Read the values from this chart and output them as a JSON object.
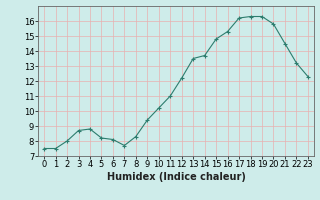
{
  "x": [
    0,
    1,
    2,
    3,
    4,
    5,
    6,
    7,
    8,
    9,
    10,
    11,
    12,
    13,
    14,
    15,
    16,
    17,
    18,
    19,
    20,
    21,
    22,
    23
  ],
  "y": [
    7.5,
    7.5,
    8.0,
    8.7,
    8.8,
    8.2,
    8.1,
    7.7,
    8.3,
    9.4,
    10.2,
    11.0,
    12.2,
    13.5,
    13.7,
    14.8,
    15.3,
    16.2,
    16.3,
    16.3,
    15.8,
    14.5,
    13.2,
    12.3
  ],
  "line_color": "#2d7d6e",
  "marker": "+",
  "bg_color": "#ceecea",
  "grid_color_major": "#e8b0b0",
  "grid_color_minor": "#e8b0b0",
  "xlabel": "Humidex (Indice chaleur)",
  "ylim": [
    7,
    17
  ],
  "xlim": [
    -0.5,
    23.5
  ],
  "yticks": [
    7,
    8,
    9,
    10,
    11,
    12,
    13,
    14,
    15,
    16
  ],
  "xticks": [
    0,
    1,
    2,
    3,
    4,
    5,
    6,
    7,
    8,
    9,
    10,
    11,
    12,
    13,
    14,
    15,
    16,
    17,
    18,
    19,
    20,
    21,
    22,
    23
  ],
  "tick_fontsize": 6,
  "xlabel_fontsize": 7
}
